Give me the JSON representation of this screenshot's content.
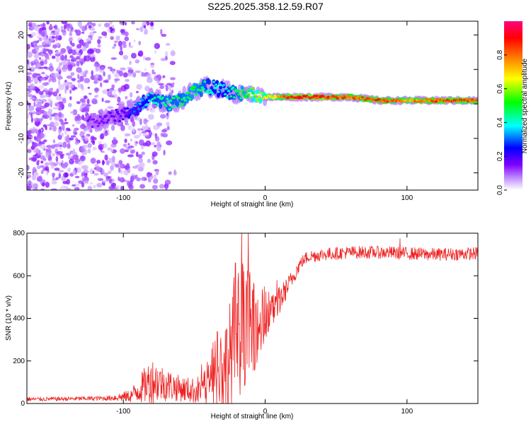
{
  "page": {
    "title": "S225.2025.358.12.59.R07"
  },
  "chart_data": [
    {
      "type": "heatmap",
      "title": "S225.2025.358.12.59.R07",
      "xlabel": "Height of straight line (km)",
      "ylabel": "Frequency (Hz)",
      "xlim": [
        -168,
        150
      ],
      "ylim": [
        -25,
        24
      ],
      "x_ticks": [
        -100,
        0,
        100
      ],
      "x_tick_labels": [
        "-100",
        "0",
        "100"
      ],
      "y_ticks": [
        -20,
        -10,
        0,
        10,
        20
      ],
      "y_tick_labels": [
        "-20",
        "-10",
        "0",
        "10",
        "20"
      ],
      "grid": false,
      "colorbar": {
        "label": "Normalized spectral amplitude",
        "range": [
          0,
          1
        ],
        "ticks": [
          0.0,
          0.2,
          0.4,
          0.6,
          0.8
        ],
        "tick_labels": [
          "0.0",
          "0.2",
          "0.4",
          "0.6",
          "0.8"
        ],
        "colors": [
          "#ffffff",
          "#b266ff",
          "#0000ff",
          "#00ffff",
          "#00ff00",
          "#ffff00",
          "#ff8000",
          "#ff0000",
          "#ff0080"
        ]
      },
      "ridge": {
        "description_points_x": [
          -120,
          -100,
          -90,
          -80,
          -70,
          -60,
          -50,
          -40,
          -30,
          -20,
          -10,
          0,
          10,
          20,
          40,
          60,
          80,
          100,
          120,
          150
        ],
        "description_points_freq": [
          -5,
          -3,
          -1,
          2,
          0,
          1,
          4,
          5,
          4,
          3,
          3,
          2,
          2,
          2,
          2,
          2,
          1,
          1,
          1,
          1
        ],
        "description_points_amp": [
          0.15,
          0.2,
          0.35,
          0.45,
          0.5,
          0.5,
          0.55,
          0.45,
          0.4,
          0.5,
          0.6,
          0.7,
          0.8,
          0.95,
          0.95,
          0.85,
          0.9,
          0.8,
          0.9,
          0.9
        ]
      }
    },
    {
      "type": "line",
      "xlabel": "Height of straight line (km)",
      "ylabel": "SNR (10 * v/v)",
      "xlim": [
        -168,
        150
      ],
      "ylim": [
        0,
        800
      ],
      "x_ticks": [
        -100,
        0,
        100
      ],
      "x_tick_labels": [
        "-100",
        "0",
        "100"
      ],
      "y_ticks": [
        0,
        200,
        400,
        600,
        800
      ],
      "y_tick_labels": [
        "0",
        "200",
        "400",
        "600",
        "800"
      ],
      "grid": false,
      "series": [
        {
          "name": "SNR",
          "color": "#ee2222",
          "envelope_x": [
            -168,
            -140,
            -110,
            -95,
            -90,
            -80,
            -70,
            -60,
            -50,
            -40,
            -30,
            -20,
            -15,
            -10,
            -5,
            0,
            5,
            10,
            15,
            20,
            25,
            30,
            40,
            60,
            80,
            100,
            120,
            150
          ],
          "envelope_mean": [
            20,
            22,
            25,
            35,
            60,
            110,
            90,
            70,
            60,
            70,
            140,
            300,
            380,
            360,
            350,
            370,
            430,
            480,
            540,
            600,
            660,
            690,
            700,
            710,
            710,
            705,
            700,
            705
          ],
          "envelope_noise": [
            10,
            10,
            12,
            30,
            60,
            110,
            80,
            60,
            60,
            90,
            220,
            300,
            300,
            250,
            150,
            120,
            90,
            70,
            50,
            40,
            30,
            30,
            30,
            30,
            30,
            30,
            30,
            30
          ],
          "peaks": [
            {
              "x": -12,
              "y": 810
            },
            {
              "x": -21,
              "y": 660
            },
            {
              "x": -15,
              "y": 620
            },
            {
              "x": 95,
              "y": 775
            }
          ]
        }
      ]
    }
  ]
}
